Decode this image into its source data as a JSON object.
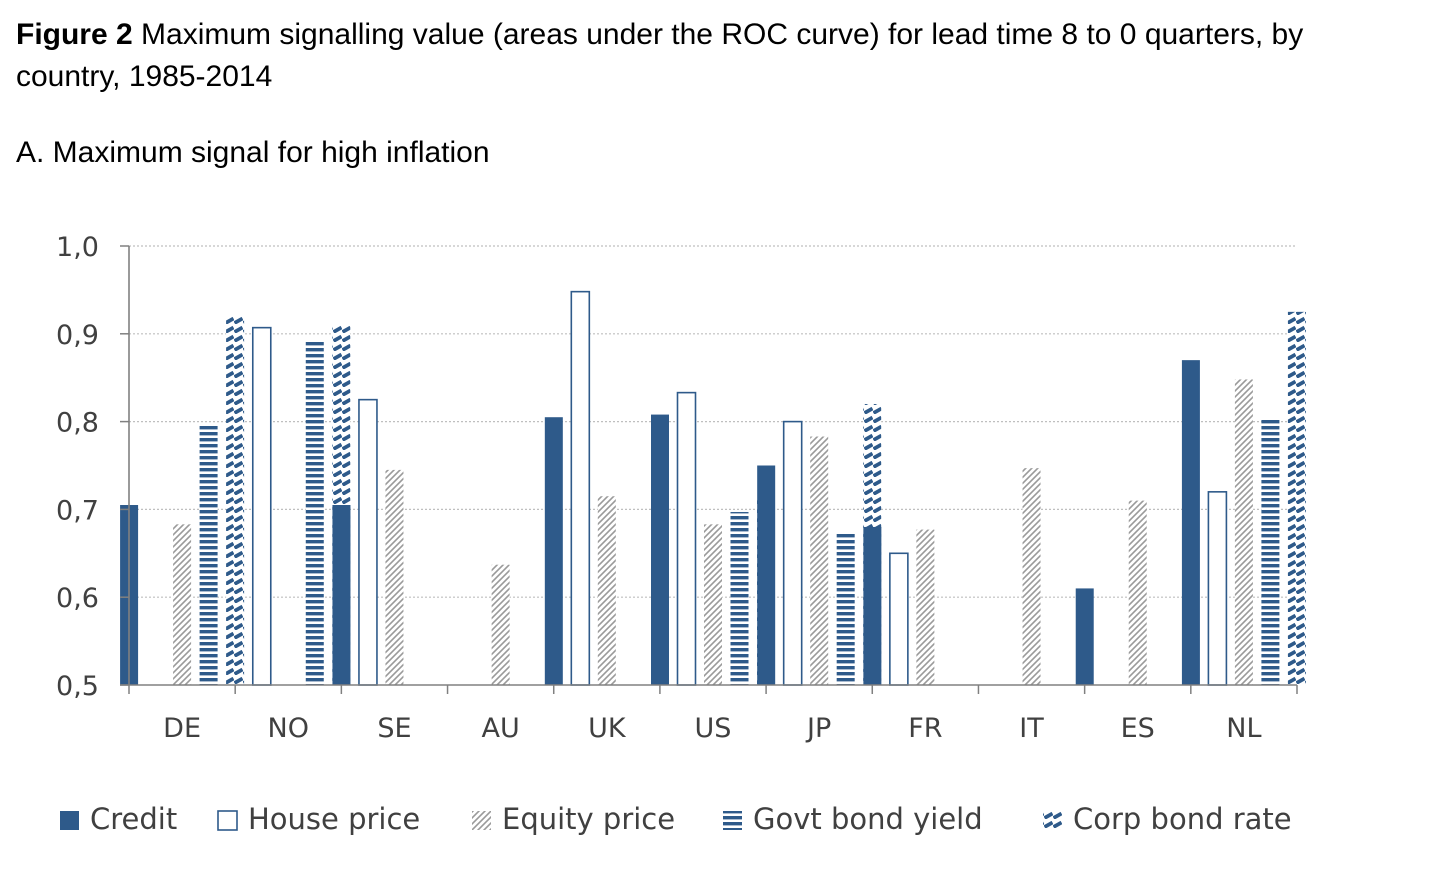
{
  "figure": {
    "label": "Figure 2",
    "caption": "Maximum signalling value (areas under the ROC curve) for lead time 8 to 0 quarters, by country, 1985-2014"
  },
  "panel": {
    "title": "A. Maximum signal for high inflation"
  },
  "colors": {
    "navy": "#2e5a8a",
    "gray": "#a8a8a8",
    "grid": "#bfbfbf",
    "axis": "#808080"
  },
  "chart_data": {
    "type": "bar",
    "title": "A. Maximum signal for high inflation",
    "xlabel": "",
    "ylabel": "",
    "ylim": [
      0.5,
      1.0
    ],
    "yticks": [
      "0,5",
      "0,6",
      "0,7",
      "0,8",
      "0,9",
      "1,0"
    ],
    "grid": true,
    "legend_position": "bottom",
    "categories": [
      "DE",
      "NO",
      "SE",
      "AU",
      "UK",
      "US",
      "JP",
      "FR",
      "IT",
      "ES",
      "NL"
    ],
    "series": [
      {
        "name": "Credit",
        "style": "solid",
        "values": [
          0.705,
          null,
          0.705,
          null,
          0.805,
          0.808,
          0.75,
          0.68,
          null,
          0.61,
          0.87
        ]
      },
      {
        "name": "House price",
        "style": "outline",
        "values": [
          null,
          0.907,
          0.825,
          null,
          0.948,
          0.833,
          0.8,
          0.65,
          null,
          null,
          0.72
        ]
      },
      {
        "name": "Equity price",
        "style": "diagonal",
        "values": [
          0.683,
          null,
          0.745,
          0.637,
          0.715,
          0.683,
          0.783,
          0.677,
          0.747,
          0.71,
          0.848
        ]
      },
      {
        "name": "Govt bond yield",
        "style": "horizontal",
        "values": [
          0.797,
          0.892,
          null,
          null,
          null,
          0.697,
          0.673,
          null,
          null,
          null,
          0.803
        ]
      },
      {
        "name": "Corp bond rate",
        "style": "dashes",
        "values": [
          0.92,
          0.91,
          null,
          null,
          null,
          0.715,
          0.82,
          null,
          null,
          null,
          0.925
        ]
      }
    ]
  }
}
